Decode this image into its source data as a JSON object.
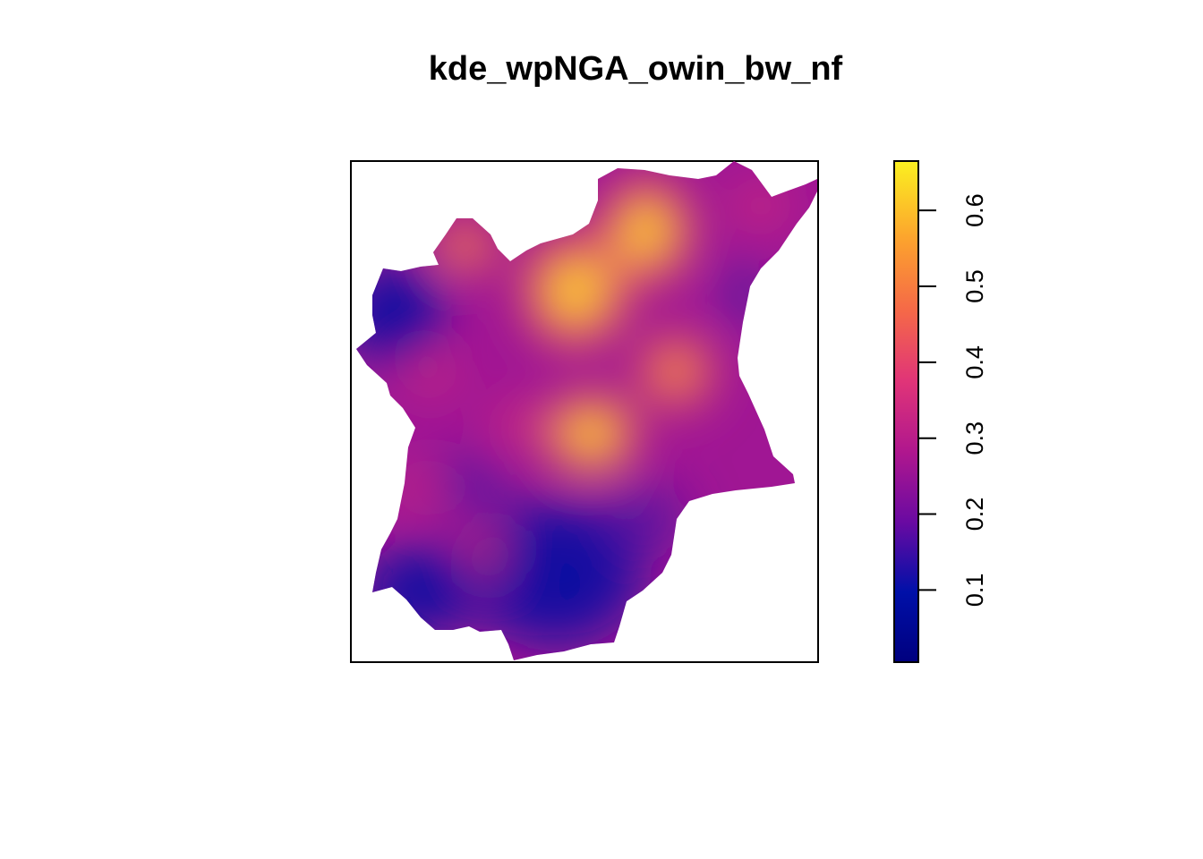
{
  "plot": {
    "title": "kde_wpNGA_owin_bw_nf"
  },
  "legend": {
    "type": "continuous color ramp",
    "placement": "right",
    "range": [
      0.005,
      0.665
    ],
    "ticks": [
      {
        "value": 0.1,
        "label": "0.1"
      },
      {
        "value": 0.2,
        "label": "0.2"
      },
      {
        "value": 0.3,
        "label": "0.3"
      },
      {
        "value": 0.4,
        "label": "0.4"
      },
      {
        "value": 0.5,
        "label": "0.5"
      },
      {
        "value": 0.6,
        "label": "0.6"
      }
    ],
    "colors": [
      "#0d0887",
      "#0000a8",
      "#4a02a0",
      "#7e03a8",
      "#aa2395",
      "#cc4778",
      "#e66c5c",
      "#f89441",
      "#fdc328",
      "#f0f921"
    ]
  },
  "map": {
    "colormap": "plasma-like (dark blue → purple → magenta → orange → yellow)",
    "background": "#ffffff"
  }
}
